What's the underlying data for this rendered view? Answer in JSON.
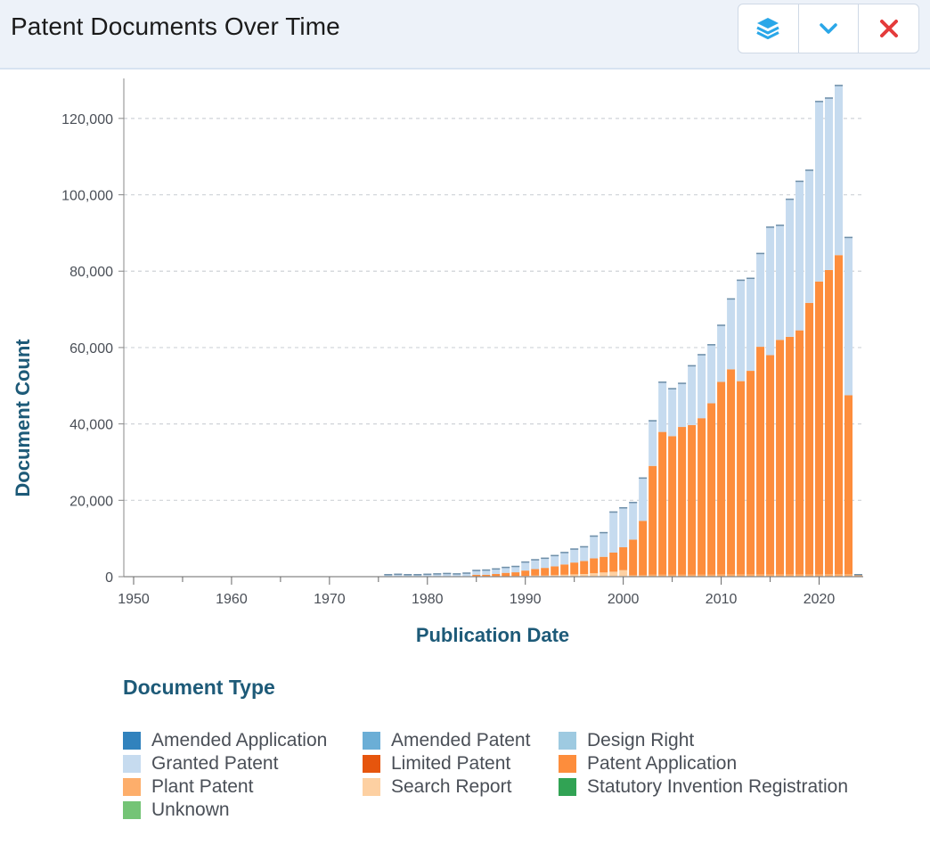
{
  "header": {
    "title": "Patent Documents Over Time",
    "icons": {
      "layers": "layers-icon",
      "collapse": "chevron-down-icon",
      "close": "close-icon"
    },
    "colors": {
      "layers": "#2aa7e8",
      "chevron": "#2aa7e8",
      "close": "#e43b3b"
    }
  },
  "legend_title": "Document Type",
  "chart_data": {
    "type": "bar",
    "stacked": true,
    "xlabel": "Publication Date",
    "ylabel": "Document Count",
    "ylim": [
      0,
      130000
    ],
    "yticks": [
      0,
      20000,
      40000,
      60000,
      80000,
      100000,
      120000
    ],
    "ytick_labels": [
      "0",
      "20,000",
      "40,000",
      "60,000",
      "80,000",
      "100,000",
      "120,000"
    ],
    "xlim": [
      1949,
      2024.5
    ],
    "xticks": [
      1950,
      1960,
      1970,
      1980,
      1990,
      2000,
      2010,
      2020
    ],
    "xtick_labels": [
      "1950",
      "1960",
      "1970",
      "1980",
      "1990",
      "2000",
      "2010",
      "2020"
    ],
    "grid": "horizontal-dashed",
    "x": [
      1976,
      1977,
      1978,
      1979,
      1980,
      1981,
      1982,
      1983,
      1984,
      1985,
      1986,
      1987,
      1988,
      1989,
      1990,
      1991,
      1992,
      1993,
      1994,
      1995,
      1996,
      1997,
      1998,
      1999,
      2000,
      2001,
      2002,
      2003,
      2004,
      2005,
      2006,
      2007,
      2008,
      2009,
      2010,
      2011,
      2012,
      2013,
      2014,
      2015,
      2016,
      2017,
      2018,
      2019,
      2020,
      2021,
      2022,
      2023,
      2024
    ],
    "series": [
      {
        "name": "Amended Application",
        "color": "#3182bd",
        "values": [
          0,
          0,
          0,
          0,
          0,
          0,
          0,
          0,
          0,
          0,
          0,
          0,
          0,
          0,
          0,
          0,
          0,
          0,
          0,
          0,
          0,
          0,
          0,
          0,
          0,
          0,
          0,
          0,
          0,
          0,
          0,
          0,
          0,
          0,
          0,
          0,
          0,
          0,
          0,
          0,
          0,
          0,
          0,
          0,
          0,
          0,
          0,
          0,
          0
        ]
      },
      {
        "name": "Amended Patent",
        "color": "#6baed6",
        "values": [
          0,
          0,
          0,
          0,
          0,
          0,
          0,
          0,
          0,
          0,
          0,
          0,
          0,
          0,
          0,
          0,
          0,
          0,
          0,
          0,
          0,
          0,
          0,
          0,
          0,
          0,
          0,
          0,
          0,
          0,
          0,
          0,
          0,
          0,
          0,
          0,
          0,
          0,
          0,
          0,
          0,
          0,
          0,
          0,
          0,
          0,
          0,
          0,
          0
        ]
      },
      {
        "name": "Design Right",
        "color": "#9ecae1",
        "values": [
          0,
          0,
          0,
          0,
          0,
          0,
          0,
          0,
          0,
          0,
          0,
          0,
          0,
          0,
          0,
          0,
          0,
          0,
          0,
          0,
          0,
          0,
          0,
          0,
          0,
          0,
          0,
          0,
          0,
          0,
          0,
          0,
          0,
          0,
          0,
          0,
          0,
          0,
          0,
          0,
          0,
          0,
          0,
          0,
          0,
          0,
          0,
          0,
          0
        ]
      },
      {
        "name": "Search Report",
        "color": "#fdd0a2",
        "values": [
          0,
          0,
          0,
          0,
          0,
          0,
          0,
          0,
          0,
          0,
          0,
          0,
          100,
          150,
          200,
          300,
          300,
          400,
          500,
          600,
          700,
          900,
          1100,
          1300,
          1700,
          0,
          0,
          0,
          0,
          0,
          0,
          0,
          0,
          0,
          0,
          0,
          0,
          0,
          0,
          0,
          0,
          0,
          0,
          0,
          0,
          0,
          0,
          0,
          0
        ]
      },
      {
        "name": "Plant Patent",
        "color": "#fdae6b",
        "values": [
          0,
          0,
          0,
          0,
          0,
          0,
          0,
          0,
          0,
          0,
          0,
          0,
          0,
          0,
          0,
          0,
          0,
          0,
          0,
          0,
          0,
          0,
          0,
          0,
          0,
          400,
          400,
          500,
          500,
          500,
          500,
          500,
          500,
          500,
          600,
          600,
          600,
          600,
          600,
          600,
          600,
          600,
          600,
          600,
          600,
          700,
          700,
          700,
          700
        ]
      },
      {
        "name": "Patent Application",
        "color": "#fd8d3c",
        "values": [
          0,
          0,
          0,
          0,
          0,
          0,
          0,
          0,
          0,
          500,
          500,
          700,
          900,
          1000,
          1400,
          1700,
          2000,
          2300,
          2700,
          3100,
          3400,
          3900,
          4100,
          5000,
          6000,
          9300,
          14200,
          28500,
          37400,
          36300,
          38700,
          39200,
          41000,
          44900,
          50400,
          53700,
          50600,
          53300,
          59600,
          57400,
          61400,
          62200,
          63900,
          71100,
          76700,
          79600,
          83500,
          46800,
          0
        ]
      },
      {
        "name": "Limited Patent",
        "color": "#e6550d",
        "values": [
          0,
          0,
          0,
          0,
          0,
          0,
          0,
          0,
          0,
          0,
          0,
          0,
          0,
          0,
          0,
          0,
          0,
          0,
          0,
          0,
          0,
          0,
          0,
          0,
          0,
          0,
          0,
          0,
          0,
          0,
          0,
          0,
          0,
          0,
          0,
          0,
          0,
          0,
          0,
          0,
          0,
          0,
          0,
          0,
          0,
          0,
          0,
          0,
          0
        ]
      },
      {
        "name": "Granted Patent",
        "color": "#c6dbef",
        "values": [
          700,
          800,
          700,
          700,
          800,
          900,
          1000,
          900,
          1100,
          1300,
          1400,
          1500,
          1600,
          1700,
          2400,
          2600,
          2700,
          3000,
          3300,
          3700,
          3900,
          6000,
          6500,
          10800,
          10500,
          9900,
          11400,
          12000,
          13200,
          12600,
          11600,
          15700,
          16800,
          15500,
          15000,
          18600,
          26600,
          24400,
          24600,
          33700,
          30200,
          36200,
          39200,
          34900,
          47300,
          45200,
          44600,
          41500,
          0
        ]
      },
      {
        "name": "Statutory Invention Registration",
        "color": "#31a354",
        "values": [
          0,
          0,
          0,
          0,
          0,
          0,
          0,
          0,
          0,
          0,
          0,
          0,
          0,
          0,
          0,
          0,
          0,
          0,
          0,
          0,
          0,
          0,
          0,
          0,
          0,
          0,
          0,
          0,
          0,
          0,
          0,
          0,
          0,
          0,
          0,
          0,
          0,
          0,
          0,
          0,
          0,
          0,
          0,
          0,
          0,
          0,
          0,
          0,
          0
        ]
      },
      {
        "name": "Unknown",
        "color": "#74c476",
        "values": [
          0,
          0,
          0,
          0,
          0,
          0,
          0,
          0,
          0,
          0,
          0,
          0,
          0,
          0,
          0,
          0,
          0,
          0,
          0,
          0,
          0,
          0,
          0,
          0,
          0,
          0,
          0,
          0,
          0,
          0,
          0,
          0,
          0,
          0,
          0,
          0,
          0,
          0,
          0,
          0,
          0,
          0,
          0,
          0,
          0,
          0,
          0,
          0,
          0
        ]
      }
    ],
    "legend_order": [
      "Amended Application",
      "Amended Patent",
      "Design Right",
      "Granted Patent",
      "Limited Patent",
      "Patent Application",
      "Plant Patent",
      "Search Report",
      "Statutory Invention Registration",
      "Unknown"
    ],
    "legend_position": "bottom"
  }
}
